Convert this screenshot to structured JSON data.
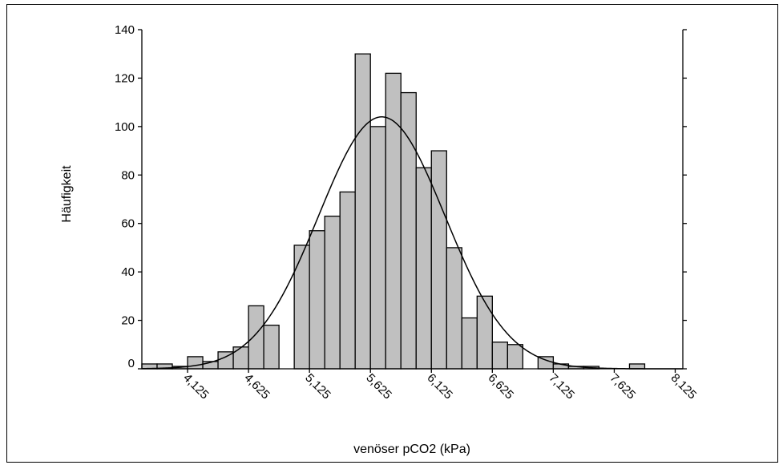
{
  "chart_data": {
    "type": "bar",
    "title": "",
    "xlabel": "venöser pCO2 (kPa)",
    "ylabel": "Häufigkeit",
    "ylim": [
      0,
      140
    ],
    "yticks": [
      "0",
      "20",
      "40",
      "60",
      "80",
      "100",
      "120",
      "140"
    ],
    "xticks": [
      "4,125",
      "4,625",
      "5,125",
      "5,625",
      "6,125",
      "6,625",
      "7,125",
      "7,625",
      "8,125"
    ],
    "bin_width": 0.125,
    "bins": [
      {
        "x": "3,8125",
        "value": 2
      },
      {
        "x": "3,9375",
        "value": 2
      },
      {
        "x": "4,0625",
        "value": 1
      },
      {
        "x": "4,1875",
        "value": 5
      },
      {
        "x": "4,3125",
        "value": 3
      },
      {
        "x": "4,4375",
        "value": 7
      },
      {
        "x": "4,5625",
        "value": 9
      },
      {
        "x": "4,6875",
        "value": 26
      },
      {
        "x": "4,8125",
        "value": 18
      },
      {
        "x": "4,9375",
        "value": 0
      },
      {
        "x": "5,0625",
        "value": 51
      },
      {
        "x": "5,1875",
        "value": 57
      },
      {
        "x": "5,3125",
        "value": 63
      },
      {
        "x": "5,4375",
        "value": 73
      },
      {
        "x": "5,5625",
        "value": 130
      },
      {
        "x": "5,6875",
        "value": 100
      },
      {
        "x": "5,8125",
        "value": 122
      },
      {
        "x": "5,9375",
        "value": 114
      },
      {
        "x": "6,0625",
        "value": 83
      },
      {
        "x": "6,1875",
        "value": 90
      },
      {
        "x": "6,3125",
        "value": 50
      },
      {
        "x": "6,4375",
        "value": 21
      },
      {
        "x": "6,5625",
        "value": 30
      },
      {
        "x": "6,6875",
        "value": 11
      },
      {
        "x": "6,8125",
        "value": 10
      },
      {
        "x": "6,9375",
        "value": 0
      },
      {
        "x": "7,0625",
        "value": 5
      },
      {
        "x": "7,1875",
        "value": 2
      },
      {
        "x": "7,3125",
        "value": 1
      },
      {
        "x": "7,4375",
        "value": 1
      },
      {
        "x": "7,5625",
        "value": 0
      },
      {
        "x": "7,6875",
        "value": 0
      },
      {
        "x": "7,8125",
        "value": 2
      }
    ],
    "curve": {
      "type": "normal-fit",
      "peak_value": 104
    },
    "bar_color": "#c0c0c0",
    "curve_color": "#000000",
    "grid": false,
    "legend": "none"
  }
}
